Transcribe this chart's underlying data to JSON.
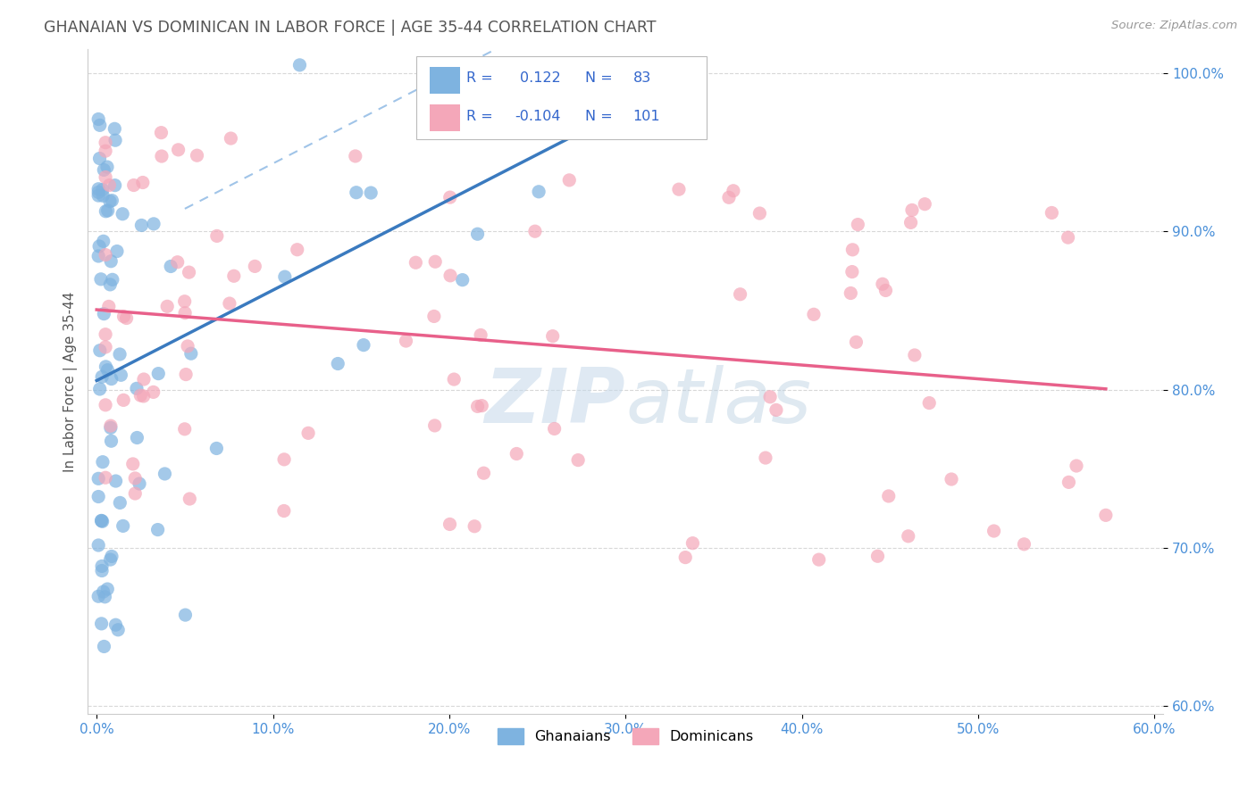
{
  "title": "GHANAIAN VS DOMINICAN IN LABOR FORCE | AGE 35-44 CORRELATION CHART",
  "source_text": "Source: ZipAtlas.com",
  "ylabel": "In Labor Force | Age 35-44",
  "x_tick_labels": [
    "0.0%",
    "10.0%",
    "20.0%",
    "30.0%",
    "40.0%",
    "50.0%",
    "60.0%"
  ],
  "y_tick_labels_right": [
    "100.0%",
    "90.0%",
    "80.0%",
    "70.0%",
    "60.0%"
  ],
  "xlim": [
    -0.005,
    0.605
  ],
  "ylim": [
    0.595,
    1.015
  ],
  "ghanaian_color": "#7eb3e0",
  "dominican_color": "#f4a7b9",
  "ghanaian_line_color": "#3a7abf",
  "dominican_line_color": "#e8608a",
  "conf_band_color": "#a0c4e8",
  "grid_color": "#d8d8d8",
  "r_ghanaian": 0.122,
  "n_ghanaian": 83,
  "r_dominican": -0.104,
  "n_dominican": 101,
  "legend_text_color": "#3366cc",
  "watermark_color": "#c5d8ea",
  "title_color": "#555555",
  "source_color": "#999999",
  "tick_color": "#4a90d9",
  "ylabel_color": "#555555"
}
